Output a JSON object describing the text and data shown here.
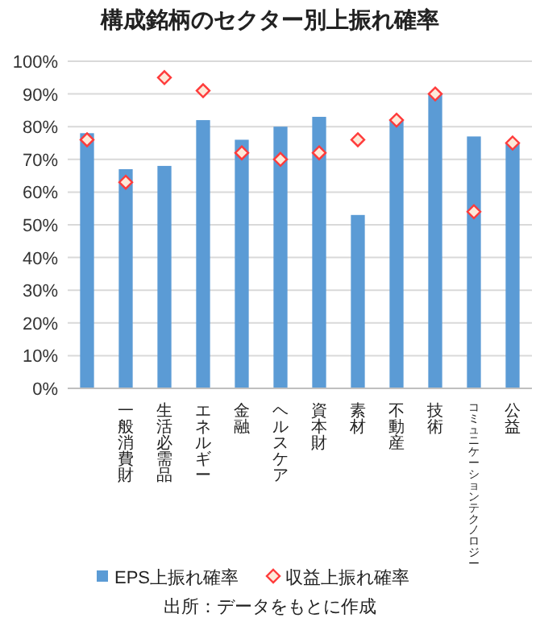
{
  "chart_data": {
    "type": "bar",
    "title": "構成銘柄のセクター別上振れ確率",
    "categories": [
      null,
      "一般消費財",
      "生活必需品",
      "エネルギー",
      "金融",
      "ヘルスケア",
      "資本財",
      "素材",
      "不動産",
      "技術",
      "コミュニケーションテクノロジー",
      "公益"
    ],
    "series": [
      {
        "name": "EPS上振れ確率",
        "type": "bar",
        "color": "#5b9bd5",
        "values": [
          78,
          67,
          68,
          82,
          76,
          80,
          83,
          53,
          82,
          90,
          77,
          75
        ]
      },
      {
        "name": "収益上振れ確率",
        "type": "scatter",
        "marker": "diamond",
        "color": "#ff3b3b",
        "values": [
          76,
          63,
          95,
          91,
          72,
          70,
          72,
          76,
          82,
          90,
          54,
          75
        ]
      }
    ],
    "ylim": [
      0,
      100
    ],
    "yticks": [
      {
        "value": 0,
        "label": "0%"
      },
      {
        "value": 10,
        "label": "10%"
      },
      {
        "value": 20,
        "label": "20%"
      },
      {
        "value": 30,
        "label": "30%"
      },
      {
        "value": 40,
        "label": "40%"
      },
      {
        "value": 50,
        "label": "50%"
      },
      {
        "value": 60,
        "label": "60%"
      },
      {
        "value": 70,
        "label": "70%"
      },
      {
        "value": 80,
        "label": "80%"
      },
      {
        "value": 90,
        "label": "90%"
      },
      {
        "value": 100,
        "label": "100%"
      }
    ],
    "grid": "y",
    "legend": "bottom",
    "annotations": [
      "出所：データをもとに作成"
    ]
  }
}
